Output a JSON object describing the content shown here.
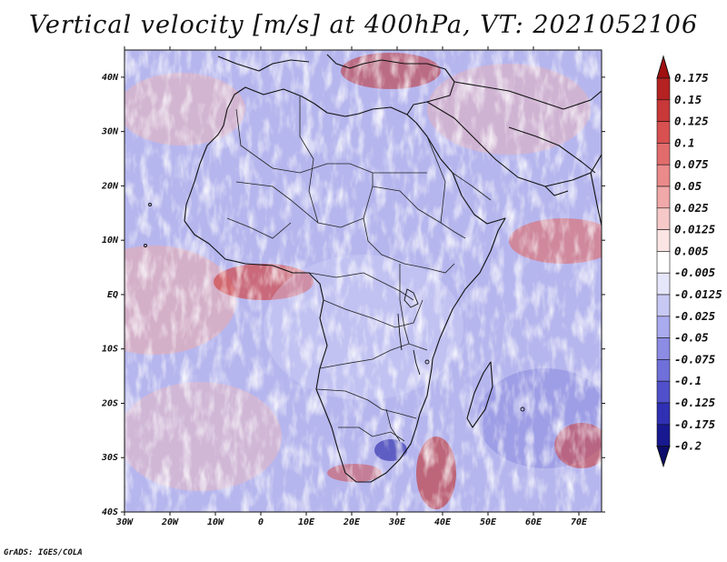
{
  "title": "Vertical velocity [m/s] at 400hPa, VT: 2021052106",
  "credit": "GrADS: IGES/COLA",
  "map": {
    "region": "Africa and surrounding oceans",
    "lon_range": [
      -30,
      75
    ],
    "lat_range": [
      -40,
      45
    ],
    "lat_ticks": [
      "40N",
      "30N",
      "20N",
      "10N",
      "EQ",
      "10S",
      "20S",
      "30S",
      "40S"
    ],
    "lon_ticks": [
      "30W",
      "20W",
      "10W",
      "0",
      "10E",
      "20E",
      "30E",
      "40E",
      "50E",
      "60E",
      "70E"
    ]
  },
  "colorbar": {
    "labels": [
      "0.175",
      "0.15",
      "0.125",
      "0.1",
      "0.075",
      "0.05",
      "0.025",
      "0.0125",
      "0.005",
      "-0.005",
      "-0.0125",
      "-0.025",
      "-0.05",
      "-0.075",
      "-0.1",
      "-0.125",
      "-0.175",
      "-0.2"
    ],
    "colors": [
      "#a01010",
      "#b42222",
      "#c83838",
      "#d85050",
      "#e26c6c",
      "#ea8a8a",
      "#f0a8a8",
      "#f6c8c8",
      "#fbe4e4",
      "#ffffff",
      "#e6e6fb",
      "#c8c8f4",
      "#aaaaee",
      "#8c8ce4",
      "#7070da",
      "#5050cc",
      "#3030b4",
      "#181890",
      "#0c0c6c"
    ]
  }
}
